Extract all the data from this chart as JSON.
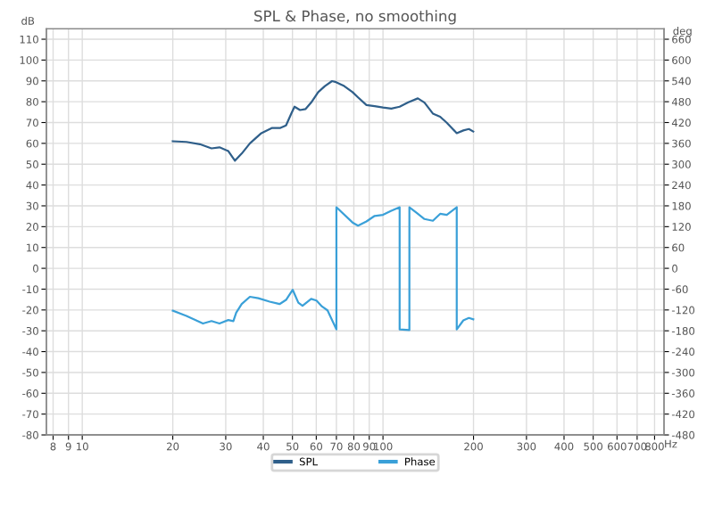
{
  "chart_data": {
    "type": "line",
    "title": "SPL & Phase, no smoothing",
    "xlabel": "Hz",
    "ylabel": "dB",
    "y2label": "deg",
    "log": "x",
    "grid": true,
    "legend": "bottom",
    "line_style": "solid",
    "marker": "none",
    "xlim": [
      7.6,
      860
    ],
    "xticks": [
      8,
      9,
      10,
      20,
      30,
      40,
      50,
      60,
      70,
      80,
      90,
      100,
      200,
      300,
      400,
      500,
      600,
      700,
      800
    ],
    "ylim": [
      -80,
      115
    ],
    "yticks": [
      -80,
      -70,
      -60,
      -50,
      -40,
      -30,
      -20,
      -10,
      0,
      10,
      20,
      30,
      40,
      50,
      60,
      70,
      80,
      90,
      100,
      110
    ],
    "y2lim": [
      -480,
      690
    ],
    "y2ticks": [
      -480,
      -420,
      -360,
      -300,
      -240,
      -180,
      -120,
      -60,
      0,
      60,
      120,
      180,
      240,
      300,
      360,
      420,
      480,
      540,
      600,
      660
    ],
    "series": [
      {
        "name": "SPL",
        "color": "#2f5f8a",
        "x": [
          20.0,
          22.2,
          24.6,
          26.9,
          28.6,
          30.6,
          32.2,
          33.9,
          36.1,
          39.4,
          42.8,
          45.6,
          47.6,
          49.7,
          50.8,
          53.0,
          55.3,
          57.7,
          60.9,
          64.1,
          67.7,
          69.8,
          74.3,
          79.2,
          82.6,
          88.1,
          93.8,
          100,
          106.6,
          113.6,
          121,
          130.6,
          137.4,
          146.5,
          154.9,
          163,
          175.9,
          185,
          193,
          199.6
        ],
        "values": [
          61.0,
          60.7,
          59.6,
          57.6,
          58.1,
          56.3,
          51.7,
          55.1,
          60.0,
          64.9,
          67.4,
          67.4,
          68.6,
          74.7,
          77.6,
          76.0,
          76.5,
          79.6,
          84.6,
          87.5,
          89.9,
          89.4,
          87.5,
          84.6,
          82.1,
          78.4,
          77.9,
          77.2,
          76.7,
          77.6,
          79.6,
          81.6,
          79.6,
          74.3,
          72.8,
          69.9,
          64.9,
          66.2,
          66.9,
          65.7
        ]
      },
      {
        "name": "Phase",
        "color": "#3aa0d8",
        "axis": "y2",
        "x": [
          20.0,
          22.2,
          25.2,
          26.9,
          28.6,
          30.6,
          31.8,
          32.5,
          33.9,
          36.1,
          38.5,
          42.0,
          45.3,
          47.6,
          50.1,
          52.3,
          54.0,
          57.7,
          60.1,
          62.7,
          65.4,
          70.0,
          70.0,
          79.2,
          82.6,
          88.1,
          93.8,
          100,
          106.6,
          113.6,
          113.6,
          122.4,
          122.4,
          128.9,
          137.4,
          146.5,
          154.9,
          163,
          175.9,
          175.9,
          185,
          193,
          199.6
        ],
        "values": [
          -122,
          -137,
          -159,
          -152,
          -159,
          -149,
          -152,
          -128,
          -103,
          -82,
          -86,
          -96,
          -103,
          -91,
          -62,
          -99,
          -108,
          -88,
          -93,
          -110,
          -121,
          -176,
          176,
          132,
          123,
          135,
          151,
          154,
          166,
          176,
          -176,
          -178,
          176,
          161,
          142,
          137,
          157,
          154,
          176,
          -176,
          -150,
          -143,
          -147
        ]
      }
    ]
  }
}
